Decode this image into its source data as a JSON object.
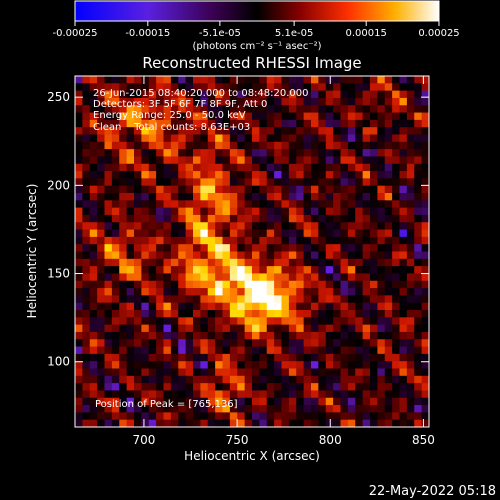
{
  "colorbar": {
    "ticks": [
      "-0.00025",
      "-0.00015",
      "-5.1e-05",
      "5.1e-05",
      "0.00015",
      "0.00025"
    ],
    "tick_values": [
      -0.00025,
      -0.00015,
      -5.1e-05,
      5.1e-05,
      0.00015,
      0.00025
    ],
    "range": [
      -0.00025,
      0.00025
    ],
    "unit_label": "(photons cm⁻² s⁻¹ asec⁻²)"
  },
  "chart_data": {
    "type": "heatmap",
    "title": "Reconstructed RHESSI Image",
    "xlabel": "Heliocentric X (arcsec)",
    "ylabel": "Heliocentric Y (arcsec)",
    "xlim": [
      663,
      853
    ],
    "ylim": [
      63,
      262
    ],
    "xticks": [
      700,
      750,
      800,
      850
    ],
    "yticks": [
      100,
      150,
      200,
      250
    ],
    "peak": {
      "x": 765,
      "y": 136
    },
    "colormap": [
      "#0000ff",
      "#6a1fd9",
      "#2a0033",
      "#000000",
      "#6a0000",
      "#d01800",
      "#ff7a00",
      "#ffd800",
      "#ffffff"
    ],
    "annotations": [
      "26-Jun-2015 08:40:20.000 to 08:48:20.000",
      "Detectors: 3F 5F 6F 7F 8F 9F, Att 0",
      "Energy Range: 25.0 - 50.0 keV",
      "Clean    Total counts: 8.63E+03"
    ],
    "peak_label": "Position of Peak = [765,136]"
  },
  "footer": {
    "date": "22-May-2022 05:18"
  }
}
